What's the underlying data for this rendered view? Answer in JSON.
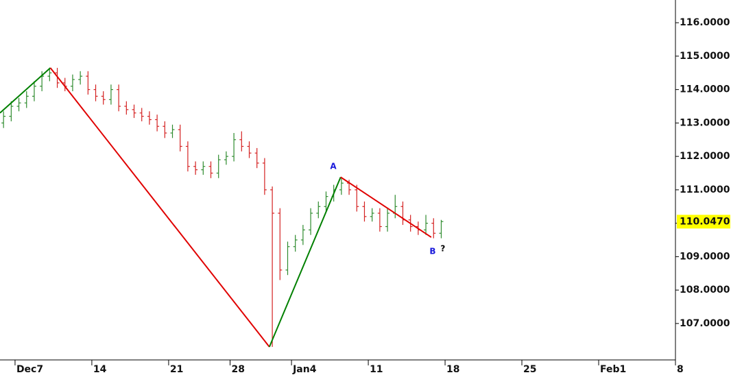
{
  "chart_data": {
    "type": "ohlc",
    "x": [
      -0.75,
      -0.25,
      0.25,
      0.75,
      1.25,
      1.75,
      2.25,
      2.75,
      3.25,
      3.75,
      4.25,
      4.75,
      5.25,
      5.75,
      6.25,
      6.75,
      7.25,
      7.75,
      8.25,
      8.75,
      9.25,
      9.75,
      10.25,
      10.75,
      11.25,
      11.75,
      12.25,
      12.75,
      13.25,
      13.75,
      14.25,
      14.75,
      15.25,
      15.75,
      16.25,
      16.75,
      17.25,
      17.75,
      18.25,
      18.75,
      19.25,
      19.75,
      20.25,
      20.75,
      21.25,
      21.75,
      22.25,
      22.75,
      23.25,
      23.75,
      24.25,
      24.75,
      25.25,
      25.75,
      26.25,
      26.75,
      27.25,
      27.75
    ],
    "open": [
      113.0,
      113.2,
      113.5,
      113.6,
      113.8,
      114.1,
      114.4,
      114.5,
      114.2,
      114.1,
      114.3,
      114.4,
      114.0,
      113.8,
      113.7,
      114.0,
      113.5,
      113.4,
      113.3,
      113.2,
      113.1,
      112.9,
      112.7,
      112.8,
      112.3,
      111.7,
      111.6,
      111.7,
      111.5,
      111.9,
      112.0,
      112.5,
      112.3,
      112.1,
      111.8,
      111.0,
      110.3,
      108.6,
      109.3,
      109.5,
      109.8,
      110.3,
      110.5,
      110.8,
      111.0,
      111.2,
      111.0,
      110.5,
      110.2,
      110.3,
      109.9,
      110.3,
      110.5,
      110.1,
      109.9,
      109.8,
      110.0,
      109.7
    ],
    "high": [
      113.35,
      113.65,
      113.75,
      113.95,
      114.25,
      114.55,
      114.65,
      114.65,
      114.35,
      114.45,
      114.55,
      114.55,
      114.15,
      113.95,
      114.15,
      114.15,
      113.65,
      113.55,
      113.45,
      113.35,
      113.25,
      113.05,
      112.95,
      112.95,
      112.45,
      111.85,
      111.85,
      111.85,
      112.05,
      112.15,
      112.7,
      112.75,
      112.45,
      112.25,
      111.95,
      111.1,
      110.45,
      109.45,
      109.65,
      109.95,
      110.45,
      110.65,
      110.95,
      111.15,
      111.35,
      111.3,
      111.15,
      110.65,
      110.45,
      110.45,
      110.45,
      110.85,
      110.65,
      110.25,
      110.05,
      110.25,
      110.15,
      110.1
    ],
    "low": [
      112.85,
      113.05,
      113.35,
      113.45,
      113.65,
      113.95,
      114.25,
      114.05,
      113.95,
      113.95,
      114.15,
      113.85,
      113.65,
      113.55,
      113.55,
      113.35,
      113.25,
      113.15,
      113.05,
      112.95,
      112.75,
      112.55,
      112.55,
      112.15,
      111.55,
      111.45,
      111.45,
      111.35,
      111.35,
      111.75,
      111.85,
      112.15,
      111.95,
      111.65,
      110.85,
      106.3,
      108.3,
      108.45,
      109.15,
      109.35,
      109.65,
      110.15,
      110.35,
      110.65,
      110.85,
      110.85,
      110.35,
      110.05,
      110.05,
      109.75,
      109.75,
      110.15,
      109.95,
      109.75,
      109.65,
      109.65,
      109.55,
      109.55
    ],
    "close": [
      113.2,
      113.5,
      113.6,
      113.8,
      114.1,
      114.4,
      114.5,
      114.2,
      114.1,
      114.3,
      114.4,
      114.0,
      113.8,
      113.7,
      114.0,
      113.5,
      113.4,
      113.3,
      113.2,
      113.1,
      112.9,
      112.7,
      112.8,
      112.3,
      111.7,
      111.6,
      111.7,
      111.5,
      111.9,
      112.0,
      112.5,
      112.3,
      112.1,
      111.8,
      111.0,
      110.3,
      108.6,
      109.3,
      109.5,
      109.8,
      110.3,
      110.5,
      110.8,
      111.0,
      111.2,
      111.0,
      110.5,
      110.2,
      110.3,
      109.9,
      110.3,
      110.5,
      110.1,
      109.9,
      109.8,
      110.0,
      109.7,
      110.05
    ],
    "up_color": "#2e8b2e",
    "down_color": "#d42020",
    "xlim": [
      -0.98,
      43
    ],
    "ylim": [
      105.91,
      116.68
    ],
    "xticks": [
      {
        "value": 0,
        "label": "Dec7"
      },
      {
        "value": 5,
        "label": "14"
      },
      {
        "value": 10,
        "label": "21"
      },
      {
        "value": 14,
        "label": "28"
      },
      {
        "value": 18,
        "label": "Jan4"
      },
      {
        "value": 23,
        "label": "11"
      },
      {
        "value": 28,
        "label": "18"
      },
      {
        "value": 33,
        "label": "25"
      },
      {
        "value": 38,
        "label": "Feb1"
      },
      {
        "value": 43,
        "label": "8"
      }
    ],
    "yticks": [
      {
        "value": 107,
        "label": "107.0000"
      },
      {
        "value": 108,
        "label": "108.0000"
      },
      {
        "value": 109,
        "label": "109.0000"
      },
      {
        "value": 110,
        "label": "110.0000"
      },
      {
        "value": 111,
        "label": "111.0000"
      },
      {
        "value": 112,
        "label": "112.0000"
      },
      {
        "value": 113,
        "label": "113.0000"
      },
      {
        "value": 114,
        "label": "114.0000"
      },
      {
        "value": 115,
        "label": "115.0000"
      },
      {
        "value": 116,
        "label": "116.0000"
      }
    ],
    "last_price": {
      "value": 110.047,
      "label": "110.0470"
    },
    "overlay": [
      {
        "color": "#008000",
        "x": [
          -0.98,
          2.3
        ],
        "y": [
          113.3,
          114.65
        ]
      },
      {
        "color": "#e00000",
        "x": [
          2.3,
          16.56
        ],
        "y": [
          114.65,
          106.3
        ]
      },
      {
        "color": "#008000",
        "x": [
          16.56,
          21.2
        ],
        "y": [
          106.3,
          111.38
        ]
      },
      {
        "color": "#e00000",
        "x": [
          21.2,
          27.1
        ],
        "y": [
          111.38,
          109.58
        ]
      }
    ],
    "annotations": [
      {
        "text": "A",
        "x": 20.72,
        "y": 111.69,
        "color": "#1a1adb"
      },
      {
        "text": "B",
        "x": 27.19,
        "y": 109.15,
        "color": "#1a1adb"
      },
      {
        "text": "?",
        "x": 27.86,
        "y": 109.23,
        "color": "#000000"
      }
    ]
  }
}
